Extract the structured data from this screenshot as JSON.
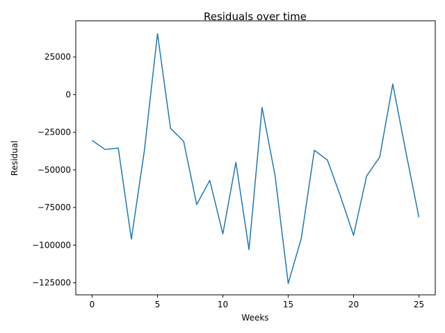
{
  "chart_data": {
    "type": "line",
    "title": "Residuals over time",
    "xlabel": "Weeks",
    "ylabel": "Residual",
    "xlim": [
      -1.25,
      26.25
    ],
    "ylim": [
      -133000,
      49000
    ],
    "xticks": [
      0,
      5,
      10,
      15,
      20,
      25
    ],
    "yticks": [
      -125000,
      -100000,
      -75000,
      -50000,
      -25000,
      0,
      25000
    ],
    "grid": false,
    "series": [
      {
        "color": "#1f77b4",
        "x": [
          0,
          1,
          2,
          3,
          4,
          5,
          6,
          7,
          8,
          9,
          10,
          11,
          12,
          13,
          14,
          15,
          16,
          17,
          18,
          19,
          20,
          21,
          22,
          23,
          24,
          25
        ],
        "y": [
          -30500,
          -36500,
          -35500,
          -96000,
          -37000,
          40500,
          -22500,
          -31000,
          -73000,
          -57000,
          -92500,
          -45000,
          -103000,
          -8500,
          -54000,
          -125500,
          -95500,
          -37000,
          -43500,
          -67500,
          -93500,
          -54000,
          -41500,
          7000,
          -38000,
          -81500
        ]
      }
    ]
  }
}
